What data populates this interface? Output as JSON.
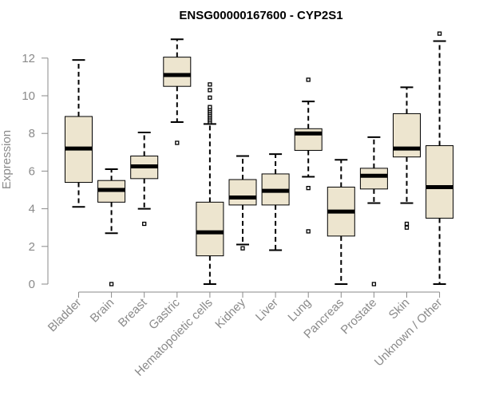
{
  "chart_data": {
    "type": "box",
    "title": "ENSG00000167600 - CYP2S1",
    "ylabel": "Expression",
    "xlabel": "",
    "ylim": [
      0,
      13.2
    ],
    "yticks": [
      "0",
      "2",
      "4",
      "6",
      "8",
      "10",
      "12"
    ],
    "box_color": "#ede5cf",
    "categories": [
      "Bladder",
      "Brain",
      "Breast",
      "Gastric",
      "Hematopoietic cells",
      "Kidney",
      "Liver",
      "Lung",
      "Pancreas",
      "Prostate",
      "Skin",
      "Unknown / Other"
    ],
    "boxes": [
      {
        "lower_whisker": 4.1,
        "q1": 5.4,
        "median": 7.2,
        "q3": 8.9,
        "upper_whisker": 11.9,
        "outliers": []
      },
      {
        "lower_whisker": 2.7,
        "q1": 4.35,
        "median": 5.0,
        "q3": 5.5,
        "upper_whisker": 6.1,
        "outliers": [
          0.0
        ]
      },
      {
        "lower_whisker": 4.0,
        "q1": 5.6,
        "median": 6.25,
        "q3": 6.8,
        "upper_whisker": 8.05,
        "outliers": [
          3.2
        ]
      },
      {
        "lower_whisker": 8.6,
        "q1": 10.5,
        "median": 11.1,
        "q3": 12.05,
        "upper_whisker": 13.0,
        "outliers": [
          7.5
        ]
      },
      {
        "lower_whisker": 0.0,
        "q1": 1.5,
        "median": 2.75,
        "q3": 4.35,
        "upper_whisker": 8.5,
        "outliers": [
          8.6,
          8.7,
          8.8,
          8.9,
          9.0,
          9.1,
          9.2,
          9.3,
          9.4,
          9.9,
          10.3,
          10.6
        ]
      },
      {
        "lower_whisker": 2.1,
        "q1": 4.2,
        "median": 4.6,
        "q3": 5.55,
        "upper_whisker": 6.8,
        "outliers": [
          1.9
        ]
      },
      {
        "lower_whisker": 1.8,
        "q1": 4.2,
        "median": 4.95,
        "q3": 5.85,
        "upper_whisker": 6.9,
        "outliers": []
      },
      {
        "lower_whisker": 5.7,
        "q1": 7.1,
        "median": 8.0,
        "q3": 8.25,
        "upper_whisker": 9.7,
        "outliers": [
          2.8,
          5.1,
          10.85
        ]
      },
      {
        "lower_whisker": 0.0,
        "q1": 2.55,
        "median": 3.85,
        "q3": 5.15,
        "upper_whisker": 6.6,
        "outliers": []
      },
      {
        "lower_whisker": 4.3,
        "q1": 5.05,
        "median": 5.75,
        "q3": 6.15,
        "upper_whisker": 7.8,
        "outliers": [
          0.0
        ]
      },
      {
        "lower_whisker": 4.3,
        "q1": 6.75,
        "median": 7.2,
        "q3": 9.05,
        "upper_whisker": 10.45,
        "outliers": [
          3.0,
          3.2
        ]
      },
      {
        "lower_whisker": 0.0,
        "q1": 3.5,
        "median": 5.15,
        "q3": 7.35,
        "upper_whisker": 12.9,
        "outliers": [
          13.3
        ]
      }
    ]
  }
}
